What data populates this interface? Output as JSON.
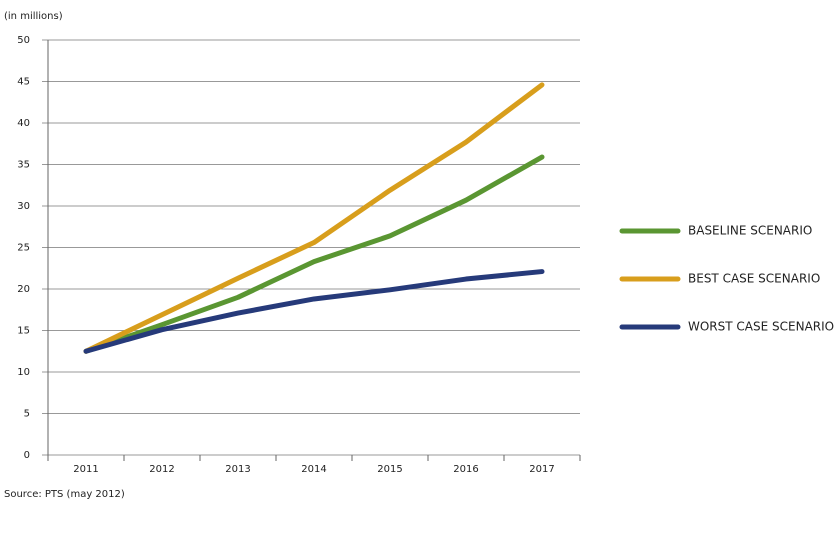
{
  "chart_data": {
    "type": "line",
    "y_axis_label": "(in millions)",
    "source": "Source: PTS (may 2012)",
    "categories": [
      "2011",
      "2012",
      "2013",
      "2014",
      "2015",
      "2016",
      "2017"
    ],
    "series": [
      {
        "name": "BASELINE SCENARIO",
        "color": "#5a9632",
        "values": [
          12.5,
          15.7,
          19.0,
          23.3,
          26.4,
          30.7,
          35.9
        ]
      },
      {
        "name": "BEST CASE SCENARIO",
        "color": "#d89e1c",
        "values": [
          12.5,
          16.9,
          21.3,
          25.6,
          31.9,
          37.7,
          44.6
        ]
      },
      {
        "name": "WORST CASE SCENARIO",
        "color": "#263a7a",
        "values": [
          12.5,
          15.1,
          17.1,
          18.8,
          19.9,
          21.2,
          22.1
        ]
      }
    ],
    "ylim": [
      0,
      50
    ],
    "yticks": [
      0,
      5,
      10,
      15,
      20,
      25,
      30,
      35,
      40,
      45,
      50
    ],
    "grid": true,
    "legend": "right"
  }
}
